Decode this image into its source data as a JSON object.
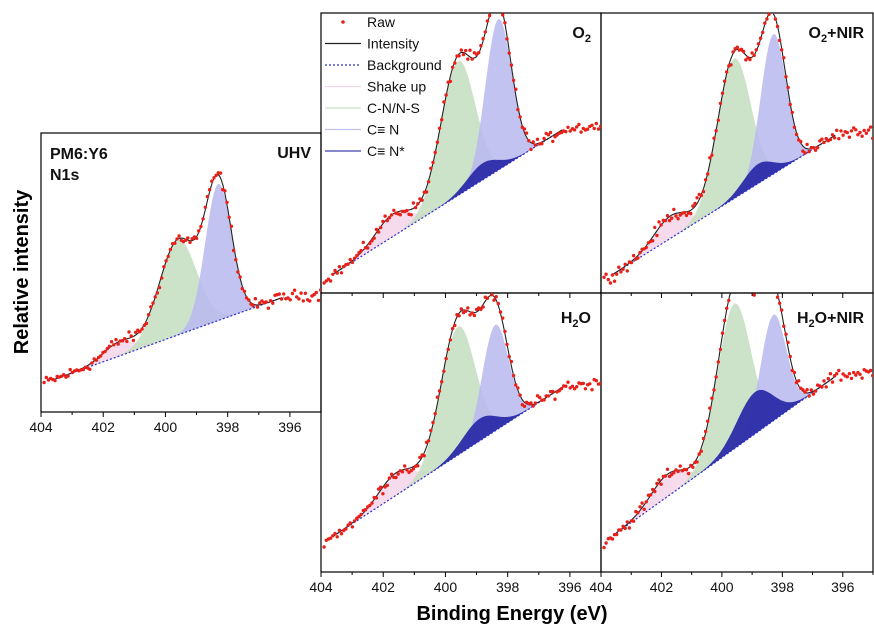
{
  "chart_data": {
    "type": "line",
    "xlabel": "Binding Energy (eV)",
    "ylabel": "Relative intensity",
    "xlim": [
      404,
      395
    ],
    "x_ticks": [
      404,
      402,
      400,
      398,
      396
    ],
    "x_tick_labels": [
      "404",
      "402",
      "400",
      "398",
      "396"
    ],
    "legend": {
      "placement": "top-left of O2 panel",
      "entries": [
        {
          "label": "Raw",
          "style": "dots",
          "color": "#e8201a"
        },
        {
          "label": "Intensity",
          "style": "line",
          "color": "#222222"
        },
        {
          "label": "Background",
          "style": "dotted",
          "color": "#2d2dc8"
        },
        {
          "label": "Shake up",
          "style": "fill",
          "color": "#f3cfe6"
        },
        {
          "label": "C-N/N-S",
          "style": "fill",
          "color": "#c4dec0"
        },
        {
          "label": "C≡ N",
          "style": "fill",
          "color": "#b9b9f0"
        },
        {
          "label": "C≡ N*",
          "style": "fill",
          "color": "#2b2ba8"
        }
      ]
    },
    "sample_label": [
      "PM6:Y6",
      "N1s"
    ],
    "panels": [
      {
        "title": "UHV",
        "baseline": [
          0.1,
          0.42
        ],
        "components": [
          {
            "name": "Shake up",
            "center": 401.5,
            "sigma": 0.5,
            "amp": 0.05
          },
          {
            "name": "C-N/N-S",
            "center": 399.6,
            "sigma": 0.6,
            "amp": 0.34
          },
          {
            "name": "C≡ N",
            "center": 398.3,
            "sigma": 0.42,
            "amp": 0.49
          },
          {
            "name": "C≡ N*",
            "center": 398.8,
            "sigma": 0.5,
            "amp": 0.0
          }
        ]
      },
      {
        "title": "O2",
        "baseline": [
          0.04,
          0.6
        ],
        "components": [
          {
            "name": "Shake up",
            "center": 401.7,
            "sigma": 0.55,
            "amp": 0.08
          },
          {
            "name": "C-N/N-S",
            "center": 399.6,
            "sigma": 0.55,
            "amp": 0.48
          },
          {
            "name": "C≡ N",
            "center": 398.3,
            "sigma": 0.42,
            "amp": 0.54
          },
          {
            "name": "C≡ N*",
            "center": 398.8,
            "sigma": 0.5,
            "amp": 0.06
          }
        ]
      },
      {
        "title": "O2+NIR",
        "baseline": [
          0.04,
          0.58
        ],
        "components": [
          {
            "name": "Shake up",
            "center": 401.7,
            "sigma": 0.55,
            "amp": 0.08
          },
          {
            "name": "C-N/N-S",
            "center": 399.6,
            "sigma": 0.55,
            "amp": 0.5
          },
          {
            "name": "C≡ N",
            "center": 398.3,
            "sigma": 0.42,
            "amp": 0.5
          },
          {
            "name": "C≡ N*",
            "center": 398.8,
            "sigma": 0.5,
            "amp": 0.07
          }
        ]
      },
      {
        "title": "H2O",
        "baseline": [
          0.1,
          0.68
        ],
        "components": [
          {
            "name": "Shake up",
            "center": 401.6,
            "sigma": 0.55,
            "amp": 0.08
          },
          {
            "name": "C-N/N-S",
            "center": 399.6,
            "sigma": 0.55,
            "amp": 0.46
          },
          {
            "name": "C≡ N",
            "center": 398.4,
            "sigma": 0.42,
            "amp": 0.38
          },
          {
            "name": "C≡ N*",
            "center": 398.9,
            "sigma": 0.55,
            "amp": 0.08
          }
        ]
      },
      {
        "title": "H2O+NIR",
        "baseline": [
          0.1,
          0.72
        ],
        "components": [
          {
            "name": "Shake up",
            "center": 401.8,
            "sigma": 0.55,
            "amp": 0.08
          },
          {
            "name": "C-N/N-S",
            "center": 399.6,
            "sigma": 0.55,
            "amp": 0.52
          },
          {
            "name": "C≡ N",
            "center": 398.3,
            "sigma": 0.42,
            "amp": 0.38
          },
          {
            "name": "C≡ N*",
            "center": 398.9,
            "sigma": 0.6,
            "amp": 0.15
          }
        ]
      }
    ]
  }
}
